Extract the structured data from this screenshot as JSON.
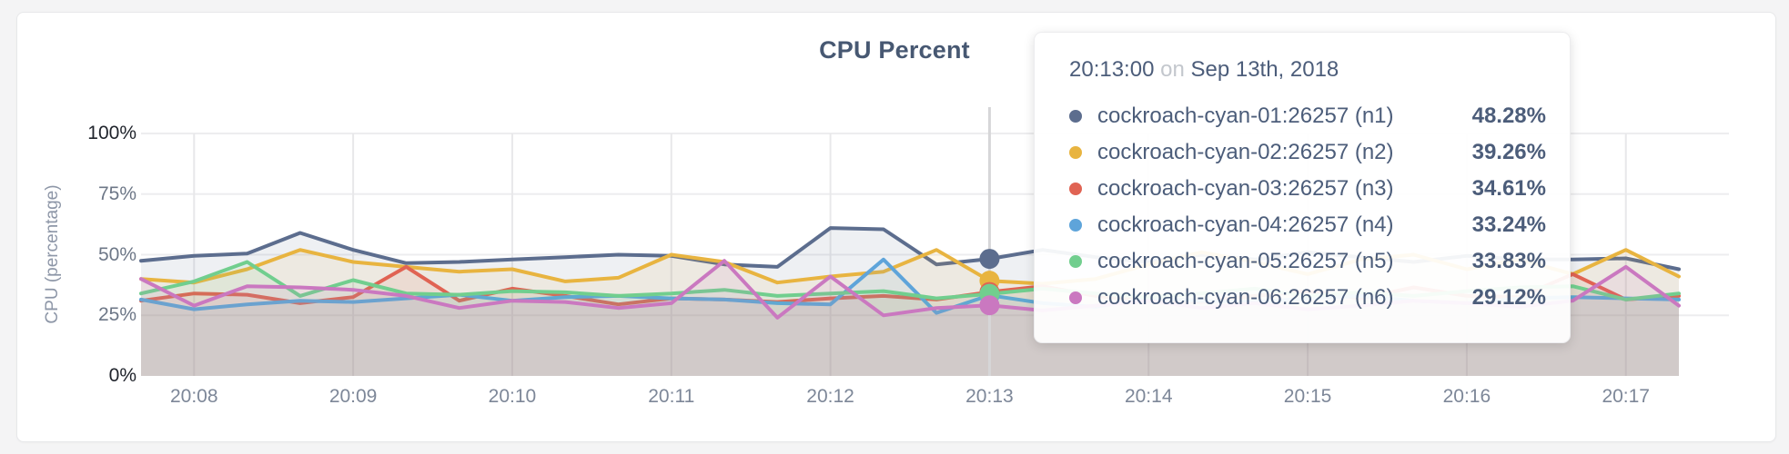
{
  "chart_data": {
    "type": "line",
    "title": "CPU Percent",
    "ylabel": "CPU (percentage)",
    "xlabel": "",
    "ylim": [
      0,
      100
    ],
    "grid": true,
    "legend_position": "hover-tooltip",
    "x_ticks": [
      "20:08",
      "20:09",
      "20:10",
      "20:11",
      "20:12",
      "20:13",
      "20:14",
      "20:15",
      "20:16",
      "20:17"
    ],
    "x_tick_indices": [
      1,
      4,
      7,
      10,
      13,
      16,
      19,
      22,
      25,
      28
    ],
    "x_start": "20:07:40",
    "x_step_seconds": 20,
    "y_ticks": [
      {
        "label": "0%",
        "value": 0,
        "strong": true
      },
      {
        "label": "25%",
        "value": 25,
        "strong": false
      },
      {
        "label": "50%",
        "value": 50,
        "strong": false
      },
      {
        "label": "75%",
        "value": 75,
        "strong": false
      },
      {
        "label": "100%",
        "value": 100,
        "strong": true
      }
    ],
    "hover_index": 16,
    "hover_time": "20:13:00",
    "series": [
      {
        "name": "cockroach-cyan-01:26257 (n1)",
        "node": "n1",
        "color": "#5c6d8e",
        "values": [
          47.5,
          49.5,
          50.5,
          59,
          52,
          46.5,
          47,
          48,
          49,
          50,
          49.5,
          46,
          45,
          61,
          60.5,
          46,
          48.28,
          52,
          49,
          47,
          50,
          48,
          51,
          49,
          47,
          49.5,
          48,
          48,
          48.5,
          44
        ]
      },
      {
        "name": "cockroach-cyan-02:26257 (n2)",
        "node": "n2",
        "color": "#e8b440",
        "values": [
          40,
          38.5,
          44,
          52,
          47,
          45,
          43,
          44,
          39,
          40.5,
          50,
          47,
          38.5,
          41,
          43,
          52,
          39.26,
          38,
          40,
          46,
          51,
          47,
          42,
          48,
          50,
          44,
          48,
          42,
          52,
          41
        ]
      },
      {
        "name": "cockroach-cyan-03:26257 (n3)",
        "node": "n3",
        "color": "#e06353",
        "values": [
          31,
          34,
          33.5,
          30,
          32.5,
          45,
          31,
          36,
          33,
          29.5,
          32,
          31.5,
          30.5,
          32,
          33,
          31.5,
          34.61,
          37,
          33,
          31,
          30.5,
          33,
          35,
          32,
          36.5,
          33,
          32.5,
          42,
          31.5,
          33
        ]
      },
      {
        "name": "cockroach-cyan-04:26257 (n4)",
        "node": "n4",
        "color": "#5ea4da",
        "values": [
          31.5,
          27.5,
          29.5,
          31,
          30.5,
          32,
          33.5,
          31,
          32.5,
          33,
          32,
          31.5,
          30,
          29.5,
          48,
          26,
          33.24,
          30,
          28.5,
          32,
          31,
          30.5,
          32,
          33,
          31,
          30,
          32,
          32.5,
          32,
          31.5
        ]
      },
      {
        "name": "cockroach-cyan-05:26257 (n5)",
        "node": "n5",
        "color": "#71ce8e",
        "values": [
          34,
          39,
          47,
          33,
          39.5,
          34,
          33.5,
          35,
          34.5,
          33,
          34,
          35.5,
          33,
          34,
          35,
          32,
          33.83,
          36,
          34,
          32.5,
          34,
          36,
          33,
          34.5,
          33,
          35,
          36.5,
          37,
          31.5,
          34
        ]
      },
      {
        "name": "cockroach-cyan-06:26257 (n6)",
        "node": "n6",
        "color": "#ca78c0",
        "values": [
          40,
          29,
          37,
          36.5,
          35.5,
          33,
          28,
          31,
          30.5,
          28,
          30,
          47.5,
          24,
          41,
          25,
          28,
          29.12,
          27,
          29,
          31,
          28,
          30,
          27.5,
          29,
          31,
          30,
          28.5,
          31,
          45,
          29
        ]
      }
    ]
  },
  "tooltip": {
    "time": "20:13:00",
    "connector": "on",
    "date": "Sep 13th, 2018",
    "rows": [
      {
        "label": "cockroach-cyan-01:26257 (n1)",
        "value": "48.28%",
        "color": "#5c6d8e"
      },
      {
        "label": "cockroach-cyan-02:26257 (n2)",
        "value": "39.26%",
        "color": "#e8b440"
      },
      {
        "label": "cockroach-cyan-03:26257 (n3)",
        "value": "34.61%",
        "color": "#e06353"
      },
      {
        "label": "cockroach-cyan-04:26257 (n4)",
        "value": "33.24%",
        "color": "#5ea4da"
      },
      {
        "label": "cockroach-cyan-05:26257 (n5)",
        "value": "33.83%",
        "color": "#71ce8e"
      },
      {
        "label": "cockroach-cyan-06:26257 (n6)",
        "value": "29.12%",
        "color": "#ca78c0"
      }
    ]
  }
}
